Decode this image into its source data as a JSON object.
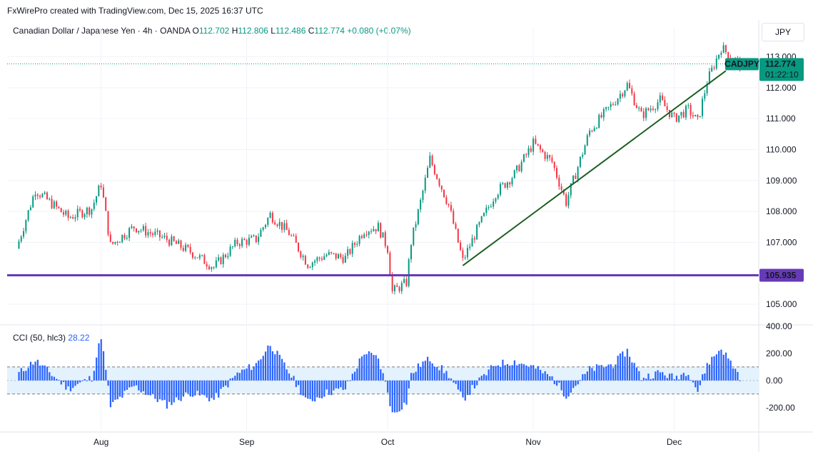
{
  "header": {
    "credit": "FxWirePro created with TradingView.com, Dec 15, 2025 16:37 UTC",
    "instrument": "Canadian Dollar / Japanese Yen · 4h · OANDA",
    "o_label": "O",
    "o_value": "112.702",
    "h_label": "H",
    "h_value": "112.806",
    "l_label": "L",
    "l_value": "112.486",
    "c_label": "C",
    "c_value": "112.774",
    "change": "+0.080 (+0.07%)",
    "currency": "JPY"
  },
  "price_tags": {
    "symbol": "CADJPY",
    "last_price": "112.774",
    "countdown": "01:22:10",
    "support_label": "105.935"
  },
  "cci": {
    "label": "CCI (50, hlc3)",
    "value": "28.22",
    "upper_band": 100,
    "lower_band": -100
  },
  "colors": {
    "up": "#089981",
    "down": "#f23645",
    "support_line": "#673ab7",
    "trend_line": "#1b5e20",
    "cci_fill": "#2962ff",
    "cci_band": "#e3f2fd"
  },
  "chart_data": [
    {
      "type": "candlestick",
      "x_ticks": [
        "Aug",
        "Sep",
        "Oct",
        "Nov",
        "Dec"
      ],
      "y_ticks": [
        "113.000",
        "112.000",
        "111.000",
        "110.000",
        "109.000",
        "108.000",
        "107.000",
        "105.000"
      ],
      "ylim": [
        104.4,
        113.8
      ],
      "last_price": 112.774,
      "support_level": 105.935,
      "trendline": {
        "from": {
          "date": "2025-10-17",
          "price": 106.25
        },
        "to": {
          "date": "2025-12-12",
          "price": 112.55
        }
      },
      "close_path": [
        [
          "2025-07-14",
          106.8
        ],
        [
          "2025-07-18",
          108.7
        ],
        [
          "2025-07-25",
          107.8
        ],
        [
          "2025-07-30",
          108.1
        ],
        [
          "2025-08-01",
          108.9
        ],
        [
          "2025-08-03",
          106.9
        ],
        [
          "2025-08-08",
          107.5
        ],
        [
          "2025-08-15",
          107.1
        ],
        [
          "2025-08-20",
          106.7
        ],
        [
          "2025-08-25",
          106.2
        ],
        [
          "2025-08-30",
          107.0
        ],
        [
          "2025-09-03",
          107.1
        ],
        [
          "2025-09-06",
          107.9
        ],
        [
          "2025-09-10",
          107.3
        ],
        [
          "2025-09-14",
          106.3
        ],
        [
          "2025-09-18",
          106.6
        ],
        [
          "2025-09-22",
          106.5
        ],
        [
          "2025-09-26",
          107.4
        ],
        [
          "2025-09-29",
          107.5
        ],
        [
          "2025-10-01",
          106.8
        ],
        [
          "2025-10-02",
          105.4
        ],
        [
          "2025-10-05",
          105.7
        ],
        [
          "2025-10-06",
          107.0
        ],
        [
          "2025-10-08",
          108.3
        ],
        [
          "2025-10-10",
          109.7
        ],
        [
          "2025-10-14",
          108.2
        ],
        [
          "2025-10-17",
          106.4
        ],
        [
          "2025-10-20",
          107.4
        ],
        [
          "2025-10-24",
          108.6
        ],
        [
          "2025-10-28",
          109.2
        ],
        [
          "2025-11-01",
          110.2
        ],
        [
          "2025-11-05",
          109.6
        ],
        [
          "2025-11-08",
          108.3
        ],
        [
          "2025-11-13",
          110.6
        ],
        [
          "2025-11-18",
          111.5
        ],
        [
          "2025-11-21",
          112.1
        ],
        [
          "2025-11-24",
          111.1
        ],
        [
          "2025-11-28",
          111.6
        ],
        [
          "2025-12-01",
          111.0
        ],
        [
          "2025-12-04",
          111.3
        ],
        [
          "2025-12-06",
          110.9
        ],
        [
          "2025-12-08",
          112.2
        ],
        [
          "2025-12-11",
          113.3
        ],
        [
          "2025-12-15",
          112.77
        ]
      ]
    },
    {
      "type": "histogram",
      "title": "CCI (50, hlc3)",
      "y_ticks": [
        "400.00",
        "200.00",
        "0.00",
        "-200.00"
      ],
      "ylim": [
        -370,
        400
      ],
      "levels": [
        100,
        -100
      ],
      "path": [
        [
          "2025-07-14",
          40
        ],
        [
          "2025-07-18",
          150
        ],
        [
          "2025-07-25",
          -60
        ],
        [
          "2025-07-30",
          20
        ],
        [
          "2025-08-01",
          330
        ],
        [
          "2025-08-03",
          -190
        ],
        [
          "2025-08-08",
          -40
        ],
        [
          "2025-08-15",
          -180
        ],
        [
          "2025-08-20",
          -90
        ],
        [
          "2025-08-25",
          -140
        ],
        [
          "2025-08-30",
          50
        ],
        [
          "2025-09-03",
          120
        ],
        [
          "2025-09-06",
          270
        ],
        [
          "2025-09-10",
          60
        ],
        [
          "2025-09-14",
          -160
        ],
        [
          "2025-09-18",
          -90
        ],
        [
          "2025-09-22",
          -60
        ],
        [
          "2025-09-26",
          210
        ],
        [
          "2025-09-29",
          160
        ],
        [
          "2025-10-01",
          -80
        ],
        [
          "2025-10-02",
          -250
        ],
        [
          "2025-10-05",
          -160
        ],
        [
          "2025-10-06",
          40
        ],
        [
          "2025-10-08",
          120
        ],
        [
          "2025-10-10",
          160
        ],
        [
          "2025-10-14",
          40
        ],
        [
          "2025-10-17",
          -140
        ],
        [
          "2025-10-20",
          -20
        ],
        [
          "2025-10-24",
          120
        ],
        [
          "2025-10-28",
          140
        ],
        [
          "2025-11-01",
          100
        ],
        [
          "2025-11-05",
          20
        ],
        [
          "2025-11-08",
          -110
        ],
        [
          "2025-11-13",
          80
        ],
        [
          "2025-11-18",
          120
        ],
        [
          "2025-11-21",
          220
        ],
        [
          "2025-11-24",
          20
        ],
        [
          "2025-11-28",
          60
        ],
        [
          "2025-12-01",
          20
        ],
        [
          "2025-12-04",
          70
        ],
        [
          "2025-12-06",
          -80
        ],
        [
          "2025-12-08",
          120
        ],
        [
          "2025-12-11",
          240
        ],
        [
          "2025-12-15",
          28
        ]
      ]
    }
  ]
}
